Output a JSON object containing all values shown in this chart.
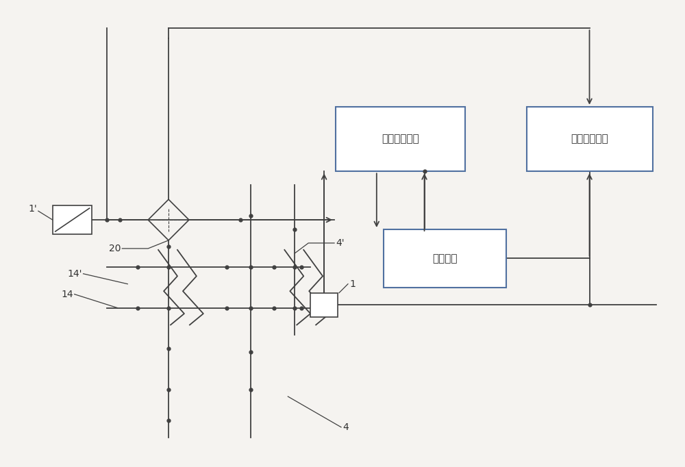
{
  "bg_color": "#f5f3f0",
  "line_color": "#404040",
  "box_line_color": "#5070a0",
  "text_color": "#303030",
  "box1_label": "第一运算模块",
  "box2_label": "第二运算模块",
  "box3_label": "分析模块",
  "label_1prime": "1'",
  "label_20": "20",
  "label_14prime": "14'",
  "label_14": "14",
  "label_4prime": "4'",
  "label_1": "1",
  "label_4": "4",
  "figw": 10.0,
  "figh": 6.82,
  "dpi": 100
}
